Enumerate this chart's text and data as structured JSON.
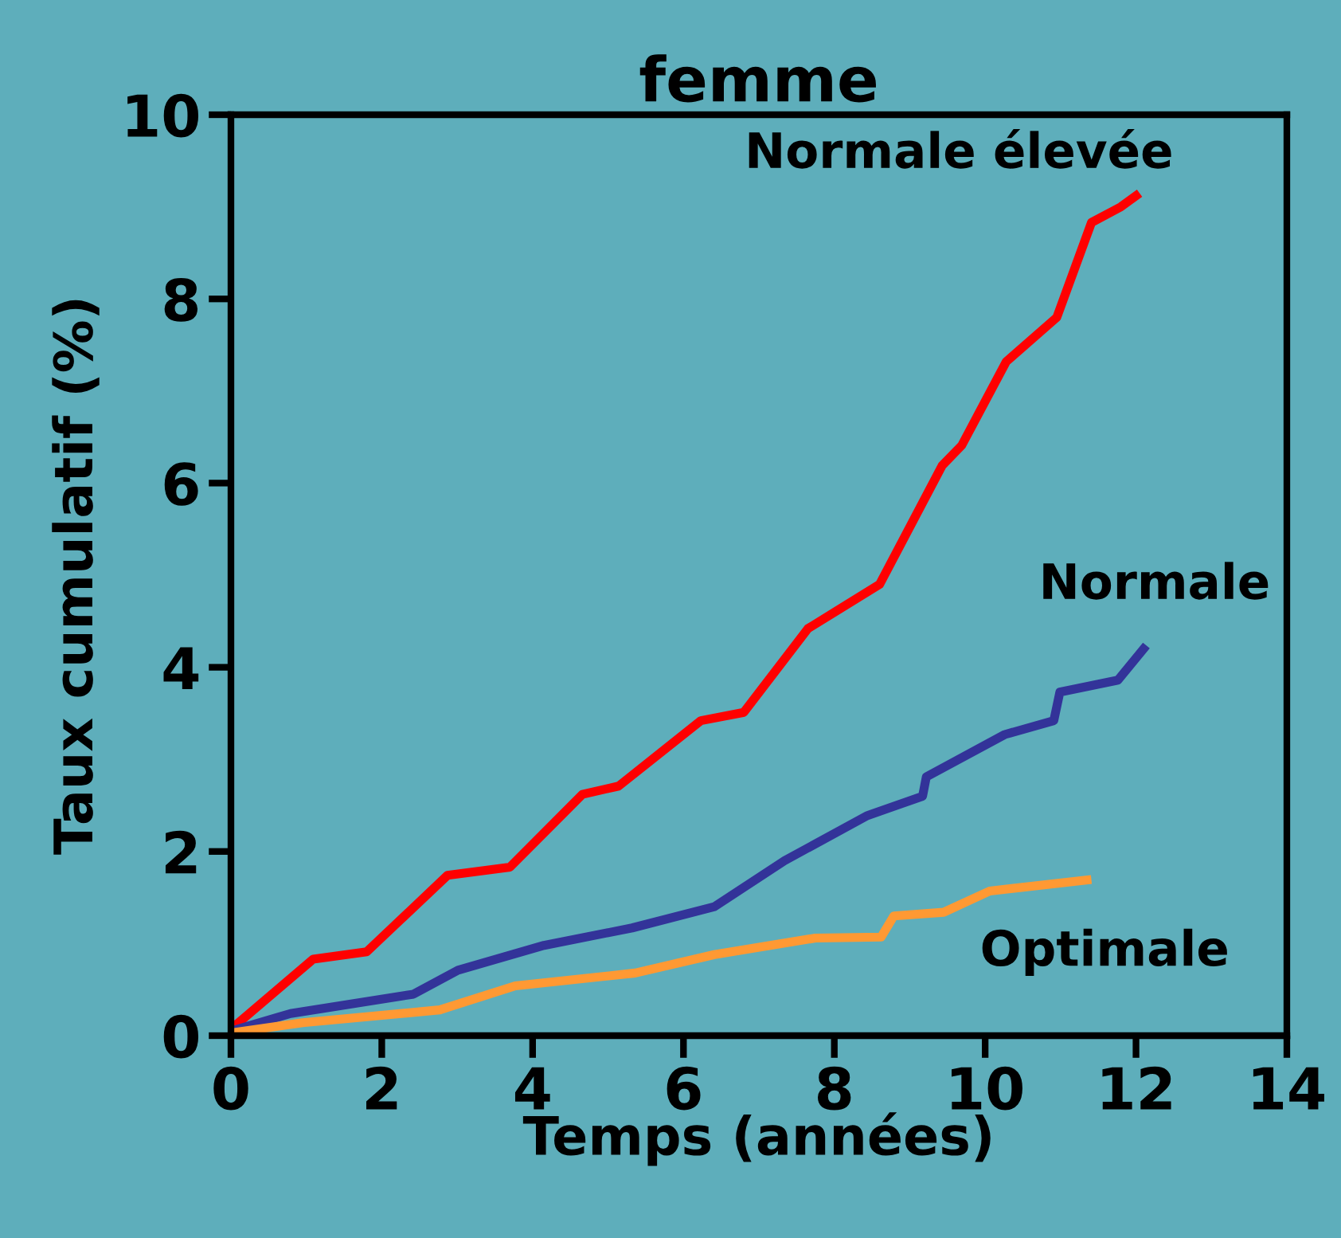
{
  "chart_data": {
    "type": "line",
    "title": "femme",
    "xlabel": "Temps (années)",
    "ylabel": "Taux cumulatif (%)",
    "xlim": [
      0,
      14
    ],
    "xticks": [
      0,
      2,
      4,
      6,
      8,
      10,
      12,
      14
    ],
    "ylim": [
      0,
      10
    ],
    "yticks": [
      0,
      2,
      4,
      6,
      8,
      10
    ],
    "grid": false,
    "legend": false,
    "marker": "none",
    "line_style": "solid",
    "series": [
      {
        "name": "Normale élevée",
        "color": "#ff0000",
        "x": [
          0,
          1.09,
          1.8,
          2.87,
          3.7,
          4.66,
          5.14,
          6.23,
          6.8,
          7.65,
          8.6,
          9.43,
          9.69,
          10.28,
          10.95,
          11.41,
          11.8,
          12.0
        ],
        "values": [
          0.07,
          0.83,
          0.91,
          1.74,
          1.83,
          2.62,
          2.71,
          3.42,
          3.51,
          4.42,
          4.9,
          6.19,
          6.41,
          7.32,
          7.8,
          8.83,
          9.0,
          9.12
        ]
      },
      {
        "name": "Normale",
        "color": "#333399",
        "x": [
          0,
          0.79,
          2.42,
          3.01,
          4.15,
          5.32,
          6.41,
          7.34,
          8.44,
          9.17,
          9.22,
          10.26,
          10.91,
          10.99,
          11.76,
          12.1
        ],
        "values": [
          0.05,
          0.24,
          0.45,
          0.71,
          0.98,
          1.17,
          1.4,
          1.9,
          2.39,
          2.6,
          2.81,
          3.27,
          3.42,
          3.73,
          3.86,
          4.2
        ]
      },
      {
        "name": "Optimale",
        "color": "#ff9933",
        "x": [
          0,
          0.95,
          2.77,
          3.77,
          5.36,
          6.41,
          7.75,
          8.62,
          8.79,
          9.45,
          10.06,
          11.35
        ],
        "values": [
          0.03,
          0.14,
          0.28,
          0.54,
          0.68,
          0.88,
          1.06,
          1.07,
          1.3,
          1.34,
          1.57,
          1.69
        ]
      }
    ]
  }
}
